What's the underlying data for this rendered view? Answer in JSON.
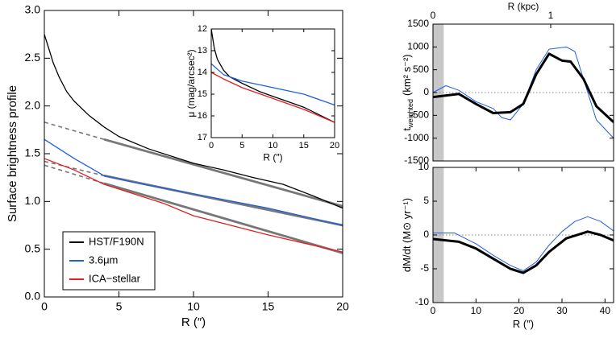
{
  "chart_data": [
    {
      "type": "line",
      "xlabel": "R (″)",
      "ylabel": "Surface brightness profile",
      "xlim": [
        0,
        20
      ],
      "ylim": [
        0,
        3
      ],
      "xticks": [
        0,
        5,
        10,
        15,
        20
      ],
      "yticks": [
        {
          "value": 0,
          "label": "0.0"
        },
        {
          "value": 0.5,
          "label": "0.5"
        },
        {
          "value": 1,
          "label": "1.0"
        },
        {
          "value": 1.5,
          "label": "1.5"
        },
        {
          "value": 2,
          "label": "2.0"
        },
        {
          "value": 2.5,
          "label": "2.5"
        },
        {
          "value": 3,
          "label": "3.0"
        }
      ],
      "legend": "lower left",
      "series": [
        {
          "name": "HST/F190N",
          "color": "#000000",
          "x": [
            0,
            0.3,
            0.6,
            1,
            1.5,
            2,
            3,
            4,
            5,
            7,
            10,
            12,
            14,
            16,
            18,
            20
          ],
          "values": [
            2.75,
            2.6,
            2.45,
            2.3,
            2.15,
            2.05,
            1.9,
            1.78,
            1.68,
            1.55,
            1.4,
            1.33,
            1.25,
            1.18,
            1.06,
            0.93
          ]
        },
        {
          "name": "3.6μm",
          "color": "#1f5fe0",
          "x": [
            0,
            2,
            4,
            6,
            10,
            15,
            20
          ],
          "values": [
            1.65,
            1.45,
            1.27,
            1.2,
            1.08,
            0.93,
            0.75
          ]
        },
        {
          "name": "ICA−stellar",
          "color": "#e02020",
          "x": [
            0,
            2,
            4,
            6,
            8,
            10,
            15,
            20
          ],
          "values": [
            1.45,
            1.33,
            1.18,
            1.08,
            0.98,
            0.85,
            0.65,
            0.47
          ]
        }
      ],
      "fits": [
        {
          "color": "#777777",
          "x": [
            0,
            4,
            20
          ],
          "values": [
            1.83,
            1.65,
            0.95
          ]
        },
        {
          "color": "#777777",
          "x": [
            0,
            4,
            20
          ],
          "values": [
            1.42,
            1.27,
            0.75
          ]
        },
        {
          "color": "#777777",
          "x": [
            0,
            4,
            20
          ],
          "values": [
            1.38,
            1.19,
            0.46
          ]
        }
      ]
    },
    {
      "type": "line",
      "xlabel": "R (″)",
      "ylabel": "μ (mag/arcsec²)",
      "xlim": [
        0,
        20
      ],
      "ylim": [
        12,
        17
      ],
      "invert_y": true,
      "xticks": [
        0,
        5,
        10,
        15,
        20
      ],
      "yticks": [
        12,
        13,
        14,
        15,
        16,
        17
      ],
      "series": [
        {
          "color": "#000000",
          "x": [
            0,
            0.5,
            1,
            2,
            3,
            5,
            8,
            10,
            12,
            15,
            20
          ],
          "values": [
            12.0,
            12.9,
            13.4,
            13.9,
            14.2,
            14.5,
            14.9,
            15.1,
            15.3,
            15.6,
            16.3
          ]
        },
        {
          "color": "#1f5fe0",
          "x": [
            0,
            2,
            5,
            10,
            15,
            20
          ],
          "values": [
            13.6,
            14.1,
            14.4,
            14.7,
            15.0,
            15.5
          ]
        },
        {
          "color": "#e02020",
          "x": [
            0,
            2,
            5,
            10,
            15,
            20
          ],
          "values": [
            14.0,
            14.3,
            14.7,
            15.2,
            15.7,
            16.3
          ]
        }
      ]
    },
    {
      "type": "line",
      "ylabel": "t",
      "ylabel_sub": "weighted",
      "ylabel_unit": "(km² s⁻²)",
      "x2label": "R (kpc)",
      "x2lim": [
        0,
        1.534
      ],
      "x2ticks": [
        0,
        1
      ],
      "xlim": [
        0,
        42
      ],
      "ylim": [
        -1500,
        1500
      ],
      "yticks": [
        -1500,
        -1000,
        -500,
        0,
        500,
        1000,
        1500
      ],
      "shade": [
        0,
        2.5
      ],
      "hline": 0,
      "series": [
        {
          "color": "#1f5fe0",
          "width": 1,
          "x": [
            0,
            3,
            6,
            10,
            14,
            16,
            18,
            21,
            24,
            27,
            31,
            33,
            35,
            38,
            42
          ],
          "values": [
            0,
            150,
            50,
            -200,
            -350,
            -550,
            -600,
            -250,
            500,
            950,
            1000,
            900,
            300,
            -600,
            -1000
          ]
        },
        {
          "color": "#000000",
          "width": 3,
          "x": [
            0,
            6,
            10,
            14,
            18,
            21,
            24,
            27,
            30,
            32,
            35,
            38,
            42
          ],
          "values": [
            -100,
            -30,
            -250,
            -450,
            -430,
            -250,
            400,
            850,
            700,
            680,
            300,
            -300,
            -650
          ]
        }
      ]
    },
    {
      "type": "line",
      "xlabel": "R (″)",
      "ylabel": "dM/dt (M⊙ yr⁻¹)",
      "xlim": [
        0,
        42
      ],
      "ylim": [
        -10,
        10
      ],
      "xticks": [
        0,
        10,
        20,
        30,
        40
      ],
      "yticks": [
        -10,
        -5,
        0,
        5,
        10
      ],
      "shade": [
        0,
        2.5
      ],
      "hline": 0,
      "series": [
        {
          "color": "#1f5fe0",
          "width": 1,
          "x": [
            0,
            5,
            10,
            14,
            18,
            21,
            24,
            27,
            30,
            33,
            36,
            39,
            42
          ],
          "values": [
            0.3,
            0.3,
            -1.3,
            -3,
            -4.5,
            -5.3,
            -4,
            -1.5,
            0.5,
            2,
            2.7,
            2,
            0.6
          ]
        },
        {
          "color": "#000000",
          "width": 3,
          "x": [
            0,
            6,
            10,
            14,
            18,
            21,
            24,
            27,
            31,
            36,
            39,
            42
          ],
          "values": [
            -0.6,
            -1,
            -2,
            -3.5,
            -5,
            -5.6,
            -4.5,
            -2.5,
            -0.5,
            0.5,
            0,
            -0.8
          ]
        }
      ]
    }
  ]
}
